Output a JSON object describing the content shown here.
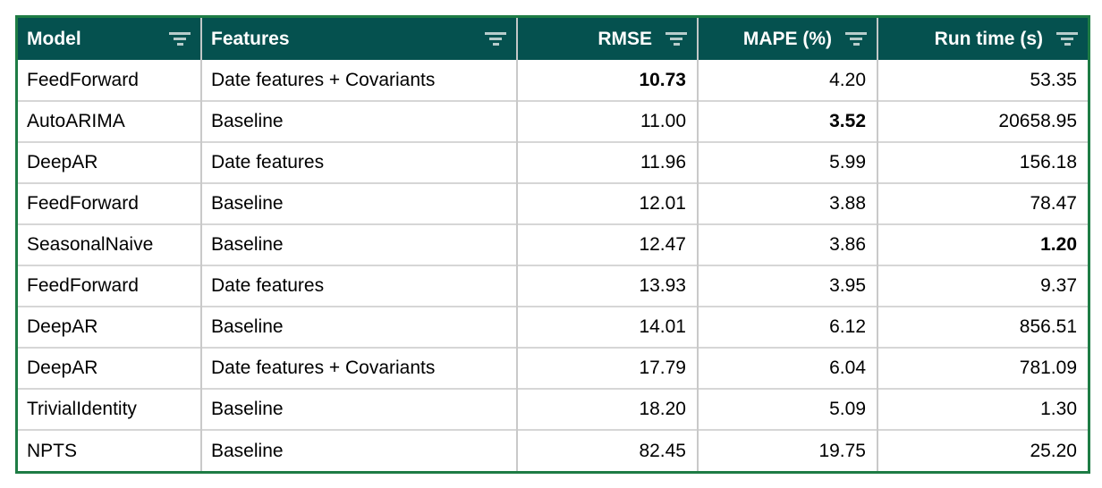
{
  "colors": {
    "header_bg": "#05514f",
    "header_text": "#ffffff",
    "outer_border": "#1e7c45",
    "grid_vertical": "#c9c9c9",
    "grid_horizontal": "#d6d6d6",
    "filter_icon": "#b7cccb",
    "body_text": "#000000",
    "body_bg": "#ffffff"
  },
  "table": {
    "columns": [
      {
        "label": "Model",
        "align": "left"
      },
      {
        "label": "Features",
        "align": "left"
      },
      {
        "label": "RMSE",
        "align": "right"
      },
      {
        "label": "MAPE (%)",
        "align": "right"
      },
      {
        "label": "Run time (s)",
        "align": "right"
      }
    ],
    "rows": [
      {
        "model": "FeedForward",
        "features": "Date features + Covariants",
        "rmse": "10.73",
        "mape": "4.20",
        "runtime": "53.35"
      },
      {
        "model": "AutoARIMA",
        "features": "Baseline",
        "rmse": "11.00",
        "mape": "3.52",
        "runtime": "20658.95"
      },
      {
        "model": "DeepAR",
        "features": "Date features",
        "rmse": "11.96",
        "mape": "5.99",
        "runtime": "156.18"
      },
      {
        "model": "FeedForward",
        "features": "Baseline",
        "rmse": "12.01",
        "mape": "3.88",
        "runtime": "78.47"
      },
      {
        "model": "SeasonalNaive",
        "features": "Baseline",
        "rmse": "12.47",
        "mape": "3.86",
        "runtime": "1.20"
      },
      {
        "model": "FeedForward",
        "features": "Date features",
        "rmse": "13.93",
        "mape": "3.95",
        "runtime": "9.37"
      },
      {
        "model": "DeepAR",
        "features": "Baseline",
        "rmse": "14.01",
        "mape": "6.12",
        "runtime": "856.51"
      },
      {
        "model": "DeepAR",
        "features": "Date features + Covariants",
        "rmse": "17.79",
        "mape": "6.04",
        "runtime": "781.09"
      },
      {
        "model": "TrivialIdentity",
        "features": "Baseline",
        "rmse": "18.20",
        "mape": "5.09",
        "runtime": "1.30"
      },
      {
        "model": "NPTS",
        "features": "Baseline",
        "rmse": "82.45",
        "mape": "19.75",
        "runtime": "25.20"
      }
    ],
    "bold_cells": [
      {
        "row": 0,
        "column": "rmse"
      },
      {
        "row": 1,
        "column": "mape"
      },
      {
        "row": 4,
        "column": "runtime"
      }
    ]
  }
}
